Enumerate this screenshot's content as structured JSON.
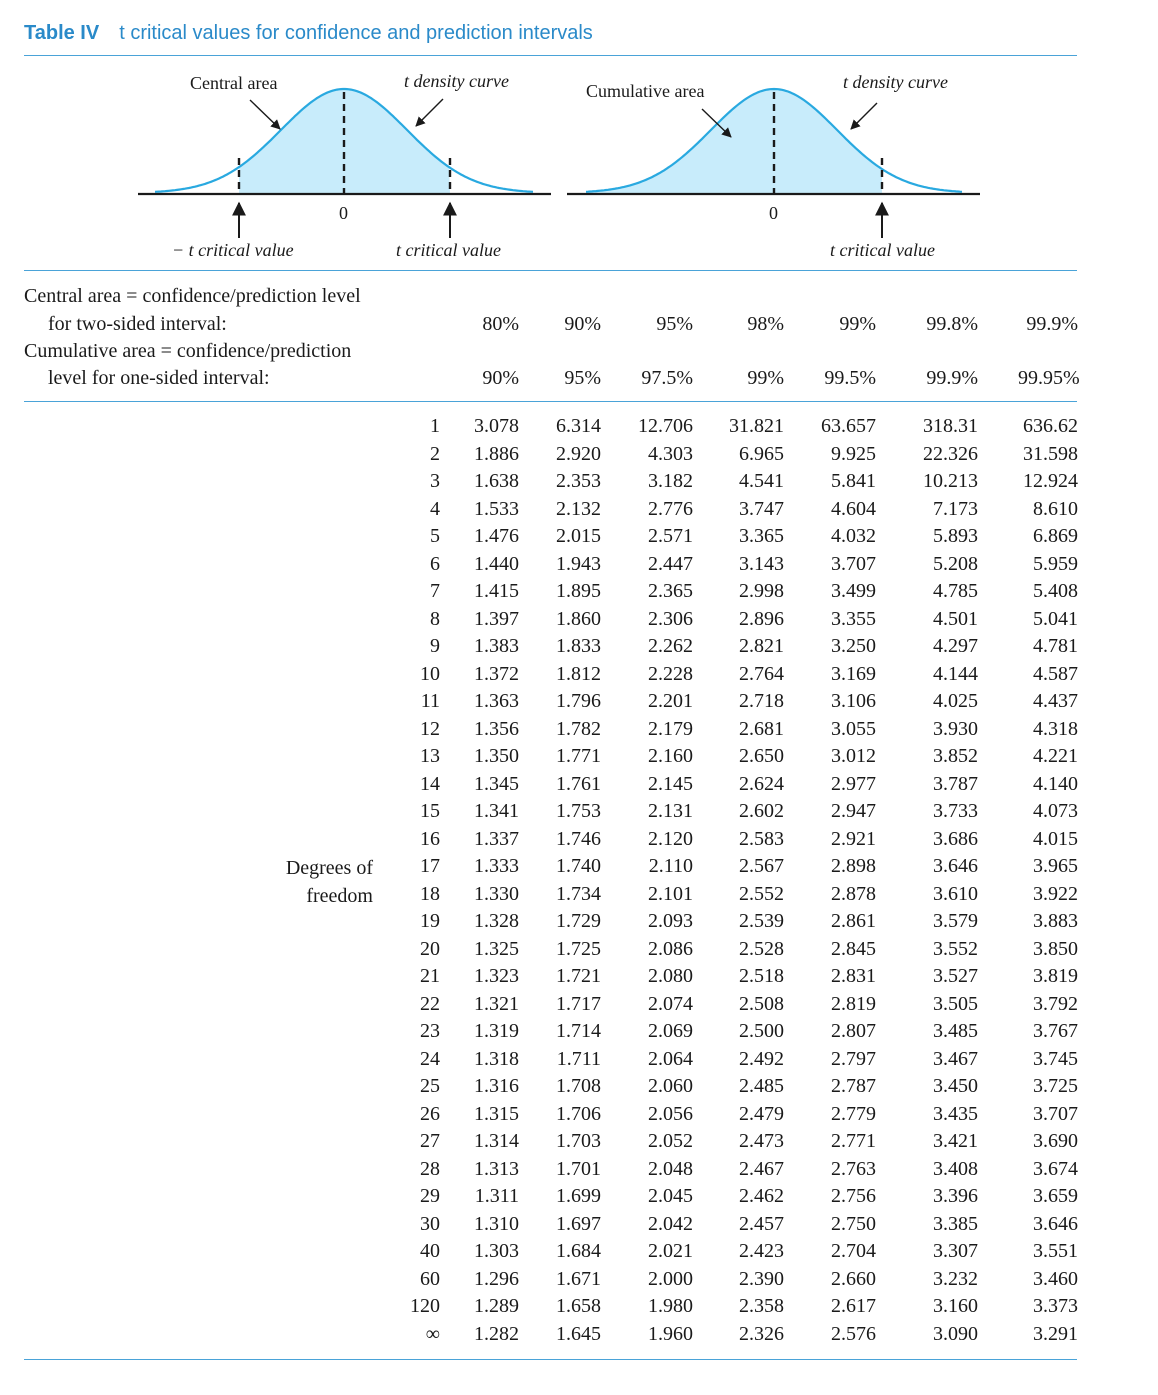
{
  "title": {
    "label": "Table IV",
    "text": "t critical values for confidence and prediction intervals"
  },
  "figure": {
    "left": {
      "central_area": "Central area",
      "density_curve": "t density curve",
      "zero": "0",
      "neg_critical": "− t critical value",
      "pos_critical": "t critical value"
    },
    "right": {
      "cumulative_area": "Cumulative area",
      "density_curve": "t density curve",
      "zero": "0",
      "critical": "t critical value"
    },
    "shade_color": "#c8ecfb",
    "curve_color": "#29a9e0"
  },
  "header": {
    "row1_line1": "Central area = confidence/prediction level",
    "row1_line2": "for two-sided interval:",
    "row2_line1": "Cumulative area = confidence/prediction",
    "row2_line2": "level for one-sided interval:",
    "two_sided": [
      "80%",
      "90%",
      "95%",
      "98%",
      "99%",
      "99.8%",
      "99.9%"
    ],
    "one_sided": [
      "90%",
      "95%",
      "97.5%",
      "99%",
      "99.5%",
      "99.9%",
      "99.95%"
    ]
  },
  "side_label": {
    "line1": "Degrees of",
    "line2": "freedom"
  },
  "table": {
    "rows": [
      {
        "df": "1",
        "v": [
          "3.078",
          "6.314",
          "12.706",
          "31.821",
          "63.657",
          "318.31",
          "636.62"
        ]
      },
      {
        "df": "2",
        "v": [
          "1.886",
          "2.920",
          "4.303",
          "6.965",
          "9.925",
          "22.326",
          "31.598"
        ]
      },
      {
        "df": "3",
        "v": [
          "1.638",
          "2.353",
          "3.182",
          "4.541",
          "5.841",
          "10.213",
          "12.924"
        ]
      },
      {
        "df": "4",
        "v": [
          "1.533",
          "2.132",
          "2.776",
          "3.747",
          "4.604",
          "7.173",
          "8.610"
        ]
      },
      {
        "df": "5",
        "v": [
          "1.476",
          "2.015",
          "2.571",
          "3.365",
          "4.032",
          "5.893",
          "6.869"
        ]
      },
      {
        "df": "6",
        "v": [
          "1.440",
          "1.943",
          "2.447",
          "3.143",
          "3.707",
          "5.208",
          "5.959"
        ]
      },
      {
        "df": "7",
        "v": [
          "1.415",
          "1.895",
          "2.365",
          "2.998",
          "3.499",
          "4.785",
          "5.408"
        ]
      },
      {
        "df": "8",
        "v": [
          "1.397",
          "1.860",
          "2.306",
          "2.896",
          "3.355",
          "4.501",
          "5.041"
        ]
      },
      {
        "df": "9",
        "v": [
          "1.383",
          "1.833",
          "2.262",
          "2.821",
          "3.250",
          "4.297",
          "4.781"
        ]
      },
      {
        "df": "10",
        "v": [
          "1.372",
          "1.812",
          "2.228",
          "2.764",
          "3.169",
          "4.144",
          "4.587"
        ]
      },
      {
        "df": "11",
        "v": [
          "1.363",
          "1.796",
          "2.201",
          "2.718",
          "3.106",
          "4.025",
          "4.437"
        ]
      },
      {
        "df": "12",
        "v": [
          "1.356",
          "1.782",
          "2.179",
          "2.681",
          "3.055",
          "3.930",
          "4.318"
        ]
      },
      {
        "df": "13",
        "v": [
          "1.350",
          "1.771",
          "2.160",
          "2.650",
          "3.012",
          "3.852",
          "4.221"
        ]
      },
      {
        "df": "14",
        "v": [
          "1.345",
          "1.761",
          "2.145",
          "2.624",
          "2.977",
          "3.787",
          "4.140"
        ]
      },
      {
        "df": "15",
        "v": [
          "1.341",
          "1.753",
          "2.131",
          "2.602",
          "2.947",
          "3.733",
          "4.073"
        ]
      },
      {
        "df": "16",
        "v": [
          "1.337",
          "1.746",
          "2.120",
          "2.583",
          "2.921",
          "3.686",
          "4.015"
        ]
      },
      {
        "df": "17",
        "v": [
          "1.333",
          "1.740",
          "2.110",
          "2.567",
          "2.898",
          "3.646",
          "3.965"
        ]
      },
      {
        "df": "18",
        "v": [
          "1.330",
          "1.734",
          "2.101",
          "2.552",
          "2.878",
          "3.610",
          "3.922"
        ]
      },
      {
        "df": "19",
        "v": [
          "1.328",
          "1.729",
          "2.093",
          "2.539",
          "2.861",
          "3.579",
          "3.883"
        ]
      },
      {
        "df": "20",
        "v": [
          "1.325",
          "1.725",
          "2.086",
          "2.528",
          "2.845",
          "3.552",
          "3.850"
        ]
      },
      {
        "df": "21",
        "v": [
          "1.323",
          "1.721",
          "2.080",
          "2.518",
          "2.831",
          "3.527",
          "3.819"
        ]
      },
      {
        "df": "22",
        "v": [
          "1.321",
          "1.717",
          "2.074",
          "2.508",
          "2.819",
          "3.505",
          "3.792"
        ]
      },
      {
        "df": "23",
        "v": [
          "1.319",
          "1.714",
          "2.069",
          "2.500",
          "2.807",
          "3.485",
          "3.767"
        ]
      },
      {
        "df": "24",
        "v": [
          "1.318",
          "1.711",
          "2.064",
          "2.492",
          "2.797",
          "3.467",
          "3.745"
        ]
      },
      {
        "df": "25",
        "v": [
          "1.316",
          "1.708",
          "2.060",
          "2.485",
          "2.787",
          "3.450",
          "3.725"
        ]
      },
      {
        "df": "26",
        "v": [
          "1.315",
          "1.706",
          "2.056",
          "2.479",
          "2.779",
          "3.435",
          "3.707"
        ]
      },
      {
        "df": "27",
        "v": [
          "1.314",
          "1.703",
          "2.052",
          "2.473",
          "2.771",
          "3.421",
          "3.690"
        ]
      },
      {
        "df": "28",
        "v": [
          "1.313",
          "1.701",
          "2.048",
          "2.467",
          "2.763",
          "3.408",
          "3.674"
        ]
      },
      {
        "df": "29",
        "v": [
          "1.311",
          "1.699",
          "2.045",
          "2.462",
          "2.756",
          "3.396",
          "3.659"
        ]
      },
      {
        "df": "30",
        "v": [
          "1.310",
          "1.697",
          "2.042",
          "2.457",
          "2.750",
          "3.385",
          "3.646"
        ]
      },
      {
        "df": "40",
        "v": [
          "1.303",
          "1.684",
          "2.021",
          "2.423",
          "2.704",
          "3.307",
          "3.551"
        ]
      },
      {
        "df": "60",
        "v": [
          "1.296",
          "1.671",
          "2.000",
          "2.390",
          "2.660",
          "3.232",
          "3.460"
        ]
      },
      {
        "df": "120",
        "v": [
          "1.289",
          "1.658",
          "1.980",
          "2.358",
          "2.617",
          "3.160",
          "3.373"
        ]
      },
      {
        "df": "∞",
        "v": [
          "1.282",
          "1.645",
          "1.960",
          "2.326",
          "2.576",
          "3.090",
          "3.291"
        ]
      }
    ]
  }
}
